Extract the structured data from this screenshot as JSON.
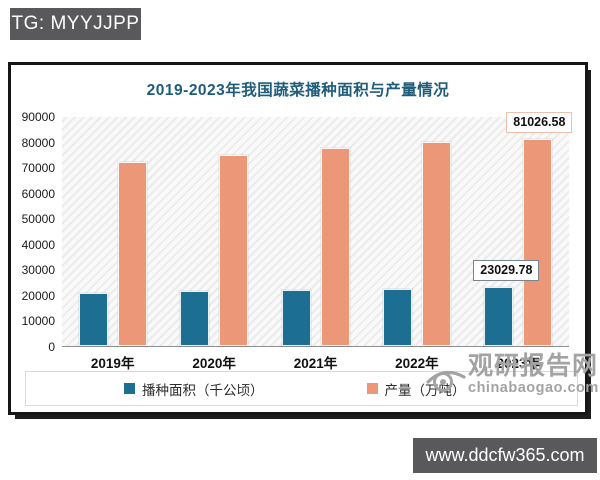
{
  "badge": {
    "text": "TG: MYYJJPP"
  },
  "chart_data": {
    "type": "bar",
    "title": "2019-2023年我国蔬菜播种面积与产量情况",
    "categories": [
      "2019年",
      "2020年",
      "2021年",
      "2022年",
      "2023年"
    ],
    "series": [
      {
        "name": "播种面积（千公顷）",
        "color": "#1d6e93",
        "values": [
          20900,
          21500,
          21900,
          22500,
          23029.78
        ]
      },
      {
        "name": "产量（万吨）",
        "color": "#ec9878",
        "values": [
          72100,
          74900,
          77500,
          80000,
          81026.58
        ]
      }
    ],
    "data_labels": [
      {
        "series": 0,
        "category_index": 4,
        "text": "23029.78"
      },
      {
        "series": 1,
        "category_index": 4,
        "text": "81026.58"
      }
    ],
    "ylim": [
      0,
      90000
    ],
    "yticks": [
      "0",
      "10000",
      "20000",
      "30000",
      "40000",
      "50000",
      "60000",
      "70000",
      "80000",
      "90000"
    ],
    "grid": false,
    "legend_position": "bottom",
    "plot_background": "diagonal-hatch"
  },
  "watermark": {
    "logo": "eye-icon",
    "name": "观研报告网",
    "domain": "chinabaogao.com"
  },
  "footer_badge": {
    "text": "www.ddcfw365.com"
  },
  "colors": {
    "series_area": "#1d6e93",
    "series_output": "#ec9878",
    "title": "#1e5c7a",
    "badge_bg": "#59595b",
    "watermark": "#a3a3a3"
  }
}
